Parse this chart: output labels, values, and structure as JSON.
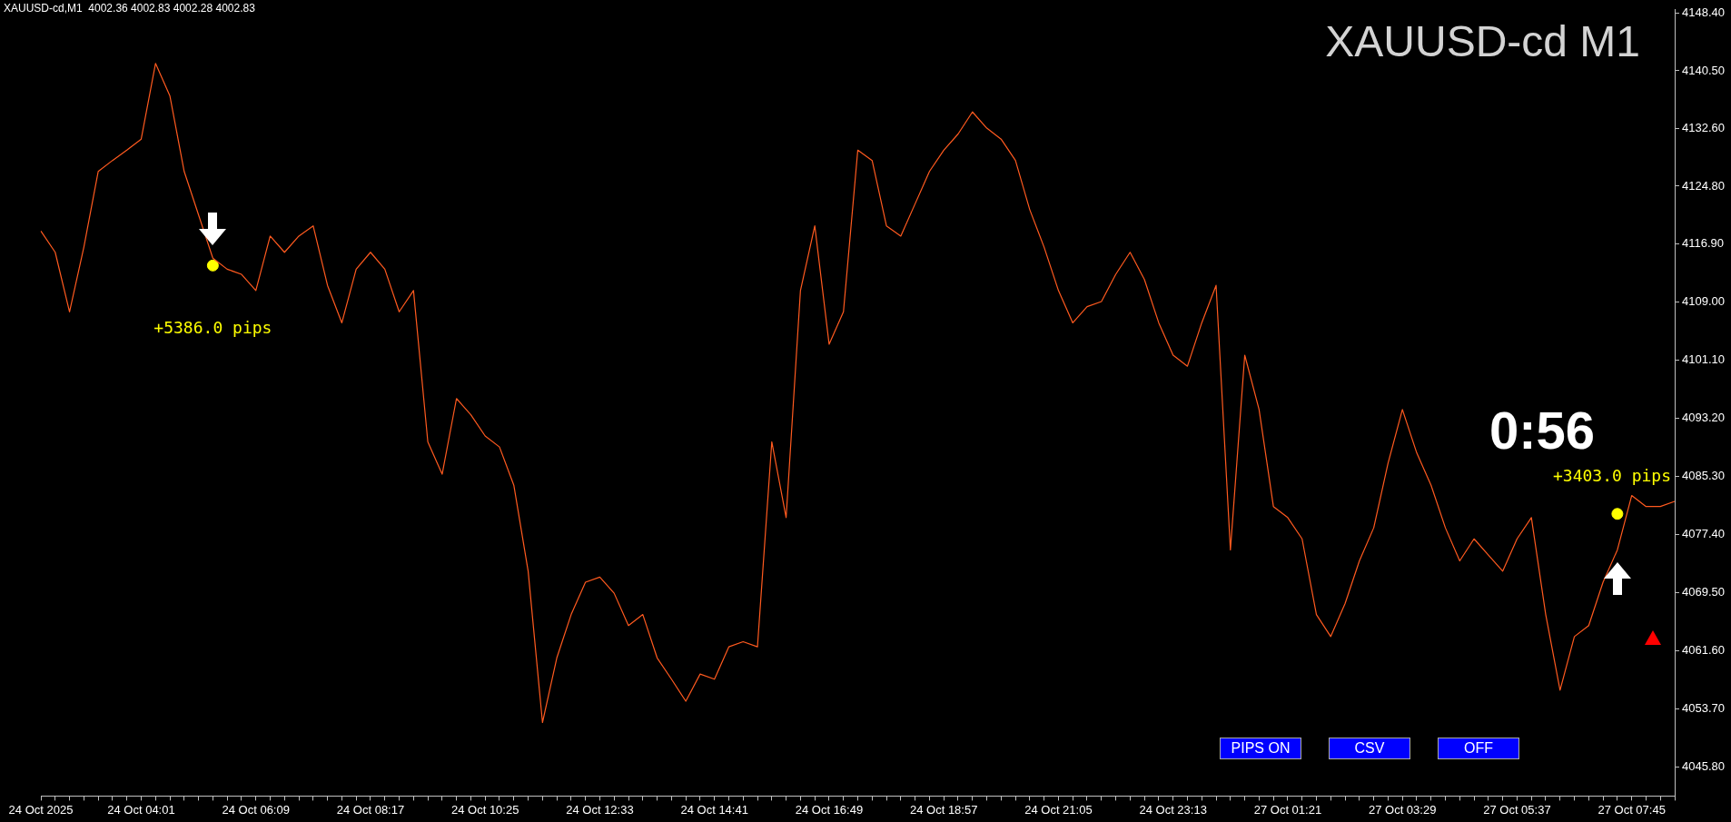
{
  "chart_data": {
    "type": "line",
    "title": "XAUUSD-cd M1",
    "annotations": [
      "XAUUSD-cd,M1  4002.36 4002.83 4002.28 4002.83",
      "0:56",
      "PIPS ON",
      "CSV",
      "OFF",
      "+5386.0 pips",
      "+3403.0 pips"
    ],
    "categories": [
      "24 Oct 2025",
      null,
      null,
      null,
      null,
      null,
      null,
      "24 Oct 04:01",
      null,
      null,
      null,
      null,
      null,
      null,
      null,
      "24 Oct 06:09",
      null,
      null,
      null,
      null,
      null,
      null,
      null,
      "24 Oct 08:17",
      null,
      null,
      null,
      null,
      null,
      null,
      null,
      "24 Oct 10:25",
      null,
      null,
      null,
      null,
      null,
      null,
      null,
      "24 Oct 12:33",
      null,
      null,
      null,
      null,
      null,
      null,
      null,
      "24 Oct 14:41",
      null,
      null,
      null,
      null,
      null,
      null,
      null,
      "24 Oct 16:49",
      null,
      null,
      null,
      null,
      null,
      null,
      null,
      "24 Oct 18:57",
      null,
      null,
      null,
      null,
      null,
      null,
      null,
      "24 Oct 21:05",
      null,
      null,
      null,
      null,
      null,
      null,
      null,
      "24 Oct 23:13",
      null,
      null,
      null,
      null,
      null,
      null,
      null,
      "27 Oct 01:21",
      null,
      null,
      null,
      null,
      null,
      null,
      null,
      "27 Oct 03:29",
      null,
      null,
      null,
      null,
      null,
      null,
      null,
      "27 Oct 05:37",
      null,
      null,
      null,
      null,
      null,
      null,
      null,
      "27 Oct 07:45",
      null,
      null,
      null
    ],
    "series": [
      {
        "color": "#ff5a1f",
        "marker": "none",
        "line_style": "solid",
        "values": [
          4118.7,
          4115.8,
          4107.7,
          4116.5,
          4126.8,
          4128.3,
          4129.7,
          4131.2,
          4141.5,
          4137.1,
          4126.8,
          4120.9,
          4115.0,
          4113.5,
          4112.8,
          4110.6,
          4118.0,
          4115.8,
          4118.0,
          4119.4,
          4111.3,
          4106.2,
          4113.5,
          4115.8,
          4113.5,
          4107.7,
          4110.6,
          4090.0,
          4085.6,
          4095.9,
          4093.7,
          4090.8,
          4089.3,
          4084.1,
          4072.4,
          4051.8,
          4060.6,
          4066.5,
          4070.9,
          4071.6,
          4069.4,
          4065.0,
          4066.5,
          4060.6,
          4057.7,
          4054.7,
          4058.4,
          4057.7,
          4062.1,
          4062.8,
          4062.1,
          4090.0,
          4079.7,
          4110.6,
          4119.4,
          4103.3,
          4107.7,
          4129.7,
          4128.3,
          4119.4,
          4118.0,
          4122.4,
          4126.8,
          4129.7,
          4131.9,
          4134.9,
          4132.7,
          4131.2,
          4128.3,
          4121.6,
          4116.5,
          4110.6,
          4106.2,
          4108.4,
          4109.1,
          4112.8,
          4115.8,
          4112.1,
          4106.2,
          4101.8,
          4100.3,
          4106.2,
          4111.3,
          4075.3,
          4101.8,
          4094.4,
          4081.2,
          4079.7,
          4076.8,
          4066.5,
          4063.5,
          4068.0,
          4073.8,
          4078.3,
          4087.1,
          4094.4,
          4088.5,
          4084.1,
          4078.3,
          4073.8,
          4076.8,
          4074.6,
          4072.4,
          4076.8,
          4079.7,
          4066.5,
          4056.2,
          4063.5,
          4065.0,
          4070.9,
          4075.3,
          4082.7,
          4081.2,
          4081.2,
          4081.9
        ]
      },
      {
        "type": "scatter",
        "color": "#ffff00",
        "marker": "circle",
        "values": [
          null,
          null,
          null,
          null,
          null,
          null,
          null,
          null,
          null,
          null,
          null,
          null,
          4114.0,
          null,
          null,
          null,
          null,
          null,
          null,
          null,
          null,
          null,
          null,
          null,
          null,
          null,
          null,
          null,
          null,
          null,
          null,
          null,
          null,
          null,
          null,
          null,
          null,
          null,
          null,
          null,
          null,
          null,
          null,
          null,
          null,
          null,
          null,
          null,
          null,
          null,
          null,
          null,
          null,
          null,
          null,
          null,
          null,
          null,
          null,
          null,
          null,
          null,
          null,
          null,
          null,
          null,
          null,
          null,
          null,
          null,
          null,
          null,
          null,
          null,
          null,
          null,
          null,
          null,
          null,
          null,
          null,
          null,
          null,
          null,
          null,
          null,
          null,
          null,
          null,
          null,
          null,
          null,
          null,
          null,
          null,
          null,
          null,
          null,
          null,
          null,
          null,
          null,
          null,
          null,
          null,
          null,
          null,
          null,
          null,
          null,
          4080.2,
          null,
          null,
          null,
          null
        ]
      }
    ],
    "ylim": [
      4041.8,
      4148.8
    ],
    "yticks": [
      {
        "value": 4045.8,
        "label": "4045.80"
      },
      {
        "value": 4053.7,
        "label": "4053.70"
      },
      {
        "value": 4061.6,
        "label": "4061.60"
      },
      {
        "value": 4069.5,
        "label": "4069.50"
      },
      {
        "value": 4077.4,
        "label": "4077.40"
      },
      {
        "value": 4085.3,
        "label": "4085.30"
      },
      {
        "value": 4093.2,
        "label": "4093.20"
      },
      {
        "value": 4101.1,
        "label": "4101.10"
      },
      {
        "value": 4109,
        "label": "4109.00"
      },
      {
        "value": 4116.9,
        "label": "4116.90"
      },
      {
        "value": 4124.8,
        "label": "4124.80"
      },
      {
        "value": 4132.6,
        "label": "4132.60"
      },
      {
        "value": 4140.5,
        "label": "4140.50"
      },
      {
        "value": 4148.4,
        "label": "4148.40"
      }
    ],
    "legend": false
  }
}
